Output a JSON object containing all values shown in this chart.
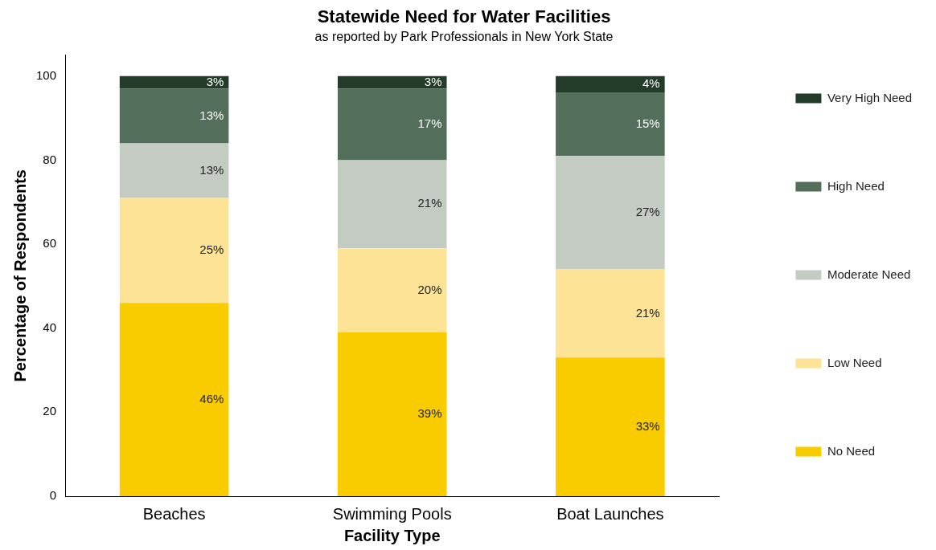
{
  "chart_data": {
    "type": "bar",
    "title": "Statewide Need for Water Facilities",
    "subtitle": "as reported by Park Professionals in New York State",
    "xlabel": "Facility Type",
    "ylabel": "Percentage of Respondents",
    "categories": [
      "Beaches",
      "Swimming Pools",
      "Boat Launches"
    ],
    "stacked": true,
    "ylim": [
      0,
      105
    ],
    "yticks": [
      0,
      20,
      40,
      60,
      80,
      100
    ],
    "grid": false,
    "legend": "right",
    "series": [
      {
        "name": "No Need",
        "color": "#f9cc00",
        "values": [
          46,
          39,
          33
        ],
        "value_labels": [
          "46%",
          "39%",
          "33%"
        ]
      },
      {
        "name": "Low Need",
        "color": "#fde396",
        "values": [
          25,
          20,
          21
        ],
        "value_labels": [
          "25%",
          "20%",
          "21%"
        ]
      },
      {
        "name": "Moderate Need",
        "color": "#c3cbc3",
        "values": [
          13,
          21,
          27
        ],
        "value_labels": [
          "13%",
          "21%",
          "27%"
        ]
      },
      {
        "name": "High Need",
        "color": "#536e5a",
        "values": [
          13,
          17,
          15
        ],
        "value_labels": [
          "13%",
          "17%",
          "15%"
        ]
      },
      {
        "name": "Very High Need",
        "color": "#233c2a",
        "values": [
          3,
          3,
          4
        ],
        "value_labels": [
          "3%",
          "3%",
          "4%"
        ]
      }
    ]
  }
}
